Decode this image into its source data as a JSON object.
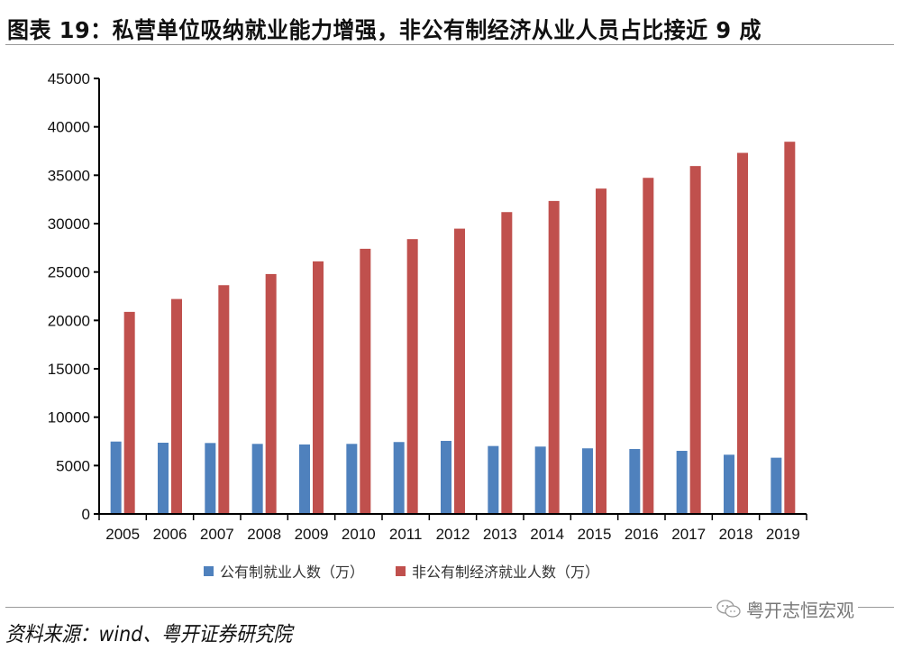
{
  "header": {
    "title": "图表 19：私营单位吸纳就业能力增强，非公有制经济从业人员占比接近 9 成"
  },
  "footer": {
    "source": "资料来源：wind、粤开证券研究院",
    "watermark": "粤开志恒宏观",
    "watermark_icon": "wechat-icon"
  },
  "colors": {
    "public": "#4f81bd",
    "non_public": "#c0504d",
    "axis": "#000000"
  },
  "chart_data": {
    "type": "bar",
    "title": "私营单位吸纳就业能力增强，非公有制经济从业人员占比接近 9 成",
    "xlabel": "",
    "ylabel": "",
    "ylim": [
      0,
      45000
    ],
    "yticks": [
      0,
      5000,
      10000,
      15000,
      20000,
      25000,
      30000,
      35000,
      40000,
      45000
    ],
    "ytick_labels": [
      "0",
      "5000",
      "10000",
      "15000",
      "20000",
      "25000",
      "30000",
      "35000",
      "40000",
      "45000"
    ],
    "grid": false,
    "legend_position": "bottom",
    "categories": [
      "2005",
      "2006",
      "2007",
      "2008",
      "2009",
      "2010",
      "2011",
      "2012",
      "2013",
      "2014",
      "2015",
      "2016",
      "2017",
      "2018",
      "2019"
    ],
    "series": [
      {
        "name": "公有制就业人数（万）",
        "color": "#4f81bd",
        "values": [
          7480,
          7360,
          7330,
          7240,
          7180,
          7240,
          7430,
          7550,
          7020,
          6960,
          6780,
          6710,
          6520,
          6120,
          5810
        ]
      },
      {
        "name": "非公有制经济就业人数（万）",
        "color": "#c0504d",
        "values": [
          20880,
          22210,
          23640,
          24790,
          26100,
          27400,
          28400,
          29480,
          31190,
          32340,
          33620,
          34730,
          35950,
          37310,
          38460
        ]
      }
    ]
  }
}
